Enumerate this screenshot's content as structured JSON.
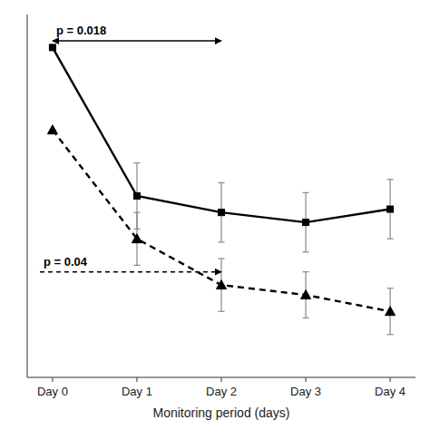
{
  "chart_data": {
    "type": "line",
    "x": [
      0,
      1,
      2,
      3,
      4
    ],
    "xlim": [
      -0.3,
      4.3
    ],
    "xticks": [
      {
        "value": 0,
        "label": "Day 0"
      },
      {
        "value": 1,
        "label": "Day 1"
      },
      {
        "value": 2,
        "label": "Day 2"
      },
      {
        "value": 3,
        "label": "Day 3"
      },
      {
        "value": 4,
        "label": "Day 4"
      }
    ],
    "ylim": [
      0,
      110
    ],
    "yticks": [],
    "tick_labels": "x",
    "grid": false,
    "xlabel": "Monitoring period (days)",
    "series": [
      {
        "values": [
          100,
          55,
          50,
          47,
          51
        ],
        "errors": [
          0,
          10,
          9,
          9,
          9
        ],
        "color": "#000000",
        "marker": "square",
        "line_style": "solid"
      },
      {
        "values": [
          75,
          42,
          28,
          25,
          20
        ],
        "errors": [
          0,
          8,
          8,
          7,
          7
        ],
        "color": "#000000",
        "marker": "triangle",
        "line_style": "dashed"
      }
    ],
    "annotations": [
      {
        "text": "p = 0.018",
        "x": [
          0,
          2
        ],
        "y": 102,
        "color": "#000000",
        "marker": "arrow-both",
        "line_style": "solid"
      },
      {
        "text": "p = 0.04",
        "x": [
          -0.15,
          2
        ],
        "y": 32,
        "color": "#000000",
        "marker": "arrow-end",
        "line_style": "dashed"
      }
    ]
  }
}
